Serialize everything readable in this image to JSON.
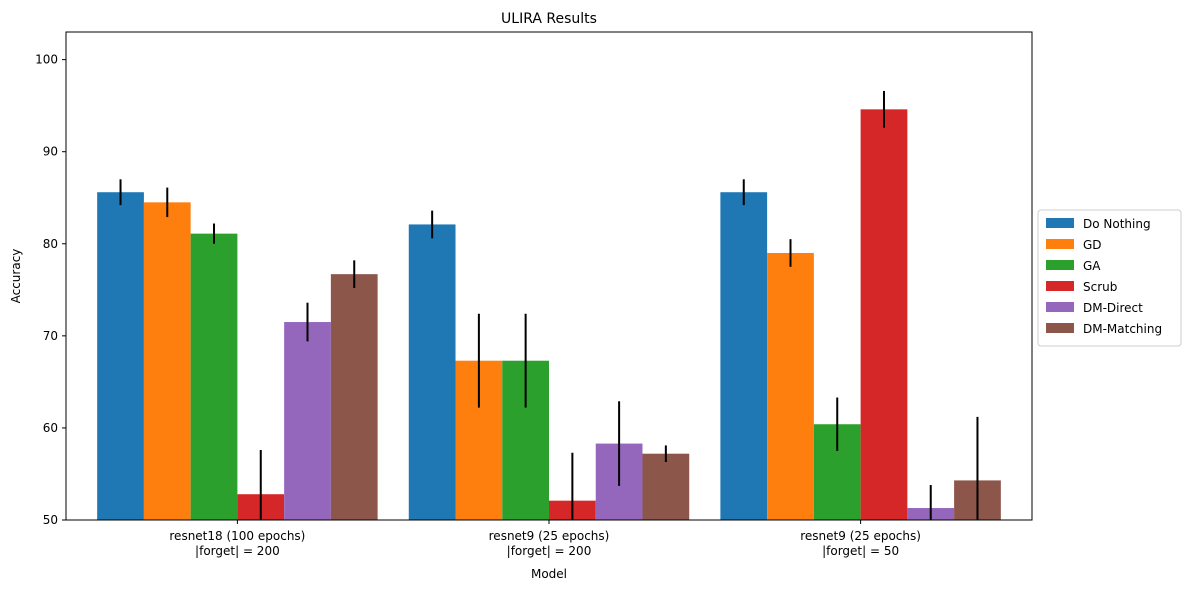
{
  "chart_data": {
    "type": "bar",
    "title": "ULIRA Results",
    "xlabel": "Model",
    "ylabel": "Accuracy",
    "ylim": [
      50,
      103
    ],
    "yticks": [
      50,
      60,
      70,
      80,
      90,
      100
    ],
    "grid": false,
    "legend_position": "right",
    "categories": [
      [
        "resnet18 (100 epochs)",
        "|forget| = 200"
      ],
      [
        "resnet9 (25 epochs)",
        "|forget| = 200"
      ],
      [
        "resnet9 (25 epochs)",
        "|forget| = 50"
      ]
    ],
    "series": [
      {
        "name": "Do Nothing",
        "color": "#1f77b4",
        "values": [
          85.6,
          82.1,
          85.6
        ],
        "errors": [
          1.4,
          1.5,
          1.4
        ]
      },
      {
        "name": "GD",
        "color": "#ff7f0e",
        "values": [
          84.5,
          67.3,
          79.0
        ],
        "errors": [
          1.6,
          5.1,
          1.5
        ]
      },
      {
        "name": "GA",
        "color": "#2ca02c",
        "values": [
          81.1,
          67.3,
          60.4
        ],
        "errors": [
          1.1,
          5.1,
          2.9
        ]
      },
      {
        "name": "Scrub",
        "color": "#d62728",
        "values": [
          52.8,
          52.1,
          94.6
        ],
        "errors": [
          4.8,
          5.2,
          2.0
        ]
      },
      {
        "name": "DM-Direct",
        "color": "#9467bd",
        "values": [
          71.5,
          58.3,
          51.3
        ],
        "errors": [
          2.1,
          4.6,
          2.5
        ]
      },
      {
        "name": "DM-Matching",
        "color": "#8c564b",
        "values": [
          76.7,
          57.2,
          54.3
        ],
        "errors": [
          1.5,
          0.9,
          6.9
        ]
      }
    ]
  }
}
